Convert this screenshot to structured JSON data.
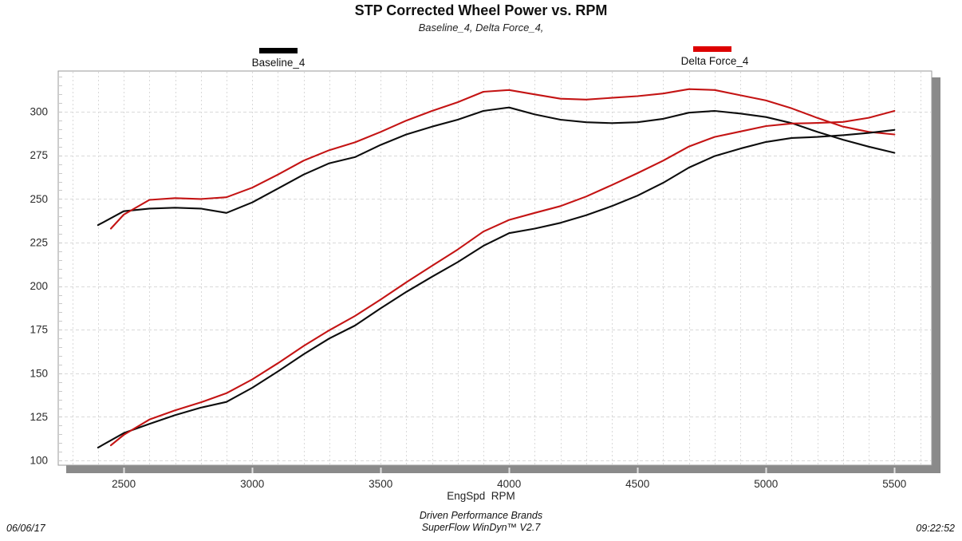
{
  "header": {
    "legend": [
      {
        "label": "Baseline_4",
        "color": "#000000"
      },
      {
        "label": "Delta Force_4",
        "color": "#dd0000"
      }
    ]
  },
  "footer": {
    "date": "06/06/17",
    "brand_line": "Driven Performance Brands",
    "software_line": "SuperFlow WinDyn™ V2.7",
    "time": "09:22:52"
  },
  "colors": {
    "baseline_line": "#0d0d0d",
    "delta_line": "#c41414",
    "grid": "#d9d9d9",
    "plot_border": "#9a9a9a",
    "plot_shadow": "#8a8a8a",
    "tick_text": "#2b2b2b"
  },
  "chart_data": {
    "type": "line",
    "title": "STP Corrected Wheel Power vs. RPM",
    "subtitle": "Baseline_4, Delta Force_4,",
    "xlabel": "EngSpd  RPM",
    "ylabel": "",
    "legend_position": "top",
    "x_ticks": [
      2500,
      3000,
      3500,
      4000,
      4500,
      5000,
      5500
    ],
    "y_ticks": [
      100,
      125,
      150,
      175,
      200,
      225,
      250,
      275,
      300
    ],
    "x_range": [
      2245,
      5645
    ],
    "y_range": [
      97.3,
      323.4
    ],
    "grid": {
      "x_minor_step": 100,
      "y_major_step": 25,
      "y_minor_tick_step": 5,
      "style": "dashed"
    },
    "series": [
      {
        "name": "Baseline_4",
        "curve": "upper",
        "color": "#0d0d0d",
        "x": [
          2400,
          2500,
          2600,
          2700,
          2800,
          2900,
          3000,
          3100,
          3200,
          3300,
          3400,
          3500,
          3600,
          3700,
          3800,
          3900,
          4000,
          4100,
          4200,
          4300,
          4400,
          4500,
          4600,
          4700,
          4800,
          4900,
          5000,
          5100,
          5200,
          5300,
          5400,
          5500
        ],
        "values": [
          235,
          243,
          244.5,
          245,
          244.5,
          242,
          248,
          256,
          264,
          270.5,
          274,
          281,
          287,
          291.5,
          295.5,
          300.5,
          302.5,
          298.5,
          295.5,
          294,
          293.5,
          294,
          296,
          299.5,
          300.5,
          299,
          297,
          293.5,
          288.5,
          284,
          280,
          276.5
        ]
      },
      {
        "name": "Delta Force_4",
        "curve": "upper",
        "color": "#c41414",
        "x": [
          2450,
          2500,
          2600,
          2700,
          2800,
          2900,
          3000,
          3100,
          3200,
          3300,
          3400,
          3500,
          3600,
          3700,
          3800,
          3900,
          4000,
          4100,
          4200,
          4300,
          4400,
          4500,
          4600,
          4700,
          4800,
          4900,
          5000,
          5100,
          5200,
          5300,
          5400,
          5500
        ],
        "values": [
          233,
          241,
          249.5,
          250.5,
          250,
          251,
          256.5,
          264,
          272,
          278,
          282.5,
          288.5,
          295,
          300.5,
          305.5,
          311.5,
          312.5,
          310,
          307.5,
          307,
          308,
          309,
          310.5,
          313,
          312.5,
          309.5,
          306.5,
          302,
          296.5,
          291.5,
          288.5,
          287
        ]
      },
      {
        "name": "Baseline_4",
        "curve": "lower",
        "color": "#0d0d0d",
        "x": [
          2400,
          2500,
          2600,
          2700,
          2800,
          2900,
          3000,
          3100,
          3200,
          3300,
          3400,
          3500,
          3600,
          3700,
          3800,
          3900,
          4000,
          4100,
          4200,
          4300,
          4400,
          4500,
          4600,
          4700,
          4800,
          4900,
          5000,
          5100,
          5200,
          5300,
          5400,
          5500
        ],
        "values": [
          107.4,
          115.7,
          121.0,
          126.0,
          130.3,
          133.6,
          141.7,
          151.1,
          160.9,
          170.0,
          177.4,
          187.3,
          196.7,
          205.4,
          213.8,
          223.1,
          230.4,
          233.0,
          236.3,
          240.7,
          245.9,
          251.9,
          259.3,
          268.0,
          274.6,
          278.9,
          282.7,
          285.0,
          285.6,
          286.6,
          287.9,
          289.6
        ]
      },
      {
        "name": "Delta Force_4",
        "curve": "lower",
        "color": "#c41414",
        "x": [
          2450,
          2500,
          2600,
          2700,
          2800,
          2900,
          3000,
          3100,
          3200,
          3300,
          3400,
          3500,
          3600,
          3700,
          3800,
          3900,
          4000,
          4100,
          4200,
          4300,
          4400,
          4500,
          4600,
          4700,
          4800,
          4900,
          5000,
          5100,
          5200,
          5300,
          5400,
          5500
        ],
        "values": [
          108.7,
          114.7,
          123.5,
          128.8,
          133.3,
          138.6,
          146.5,
          155.8,
          165.7,
          174.7,
          182.9,
          192.3,
          202.2,
          211.7,
          221.0,
          231.3,
          238.0,
          242.0,
          245.9,
          251.4,
          258.0,
          264.8,
          272.0,
          280.1,
          285.6,
          288.7,
          291.8,
          293.3,
          293.6,
          294.2,
          296.6,
          300.5
        ]
      }
    ]
  }
}
